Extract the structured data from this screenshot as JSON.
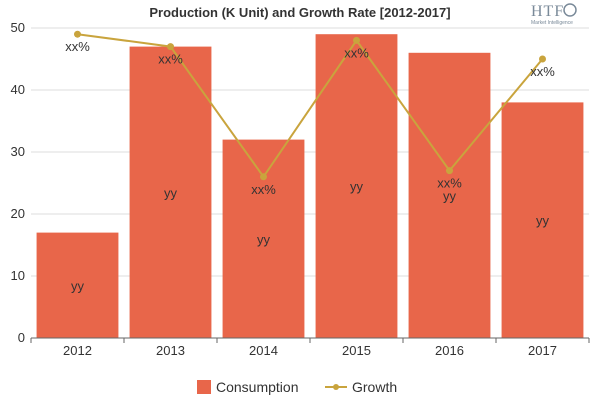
{
  "chart_data": {
    "type": "bar",
    "title": "Production (K Unit) and Growth Rate [2012-2017]",
    "categories": [
      "2012",
      "2013",
      "2014",
      "2015",
      "2016",
      "2017"
    ],
    "series": [
      {
        "name": "Consumption",
        "kind": "bar",
        "values": [
          17,
          47,
          32,
          49,
          46,
          38
        ],
        "labels": [
          "yy",
          "yy",
          "yy",
          "yy",
          "yy",
          "yy"
        ],
        "color": "#e8664a"
      },
      {
        "name": "Growth",
        "kind": "line",
        "values": [
          49,
          47,
          26,
          48,
          27,
          45
        ],
        "labels": [
          "xx%",
          "xx%",
          "xx%",
          "xx%",
          "xx%",
          "xx%"
        ],
        "color": "#c9a43d"
      }
    ],
    "ylim": [
      0,
      50
    ],
    "yticks": [
      "0",
      "10",
      "20",
      "30",
      "40",
      "50"
    ],
    "grid": "horizontal",
    "legend_position": "bottom"
  },
  "logo": {
    "name": "HTF",
    "tagline": "Market Intelligence"
  }
}
